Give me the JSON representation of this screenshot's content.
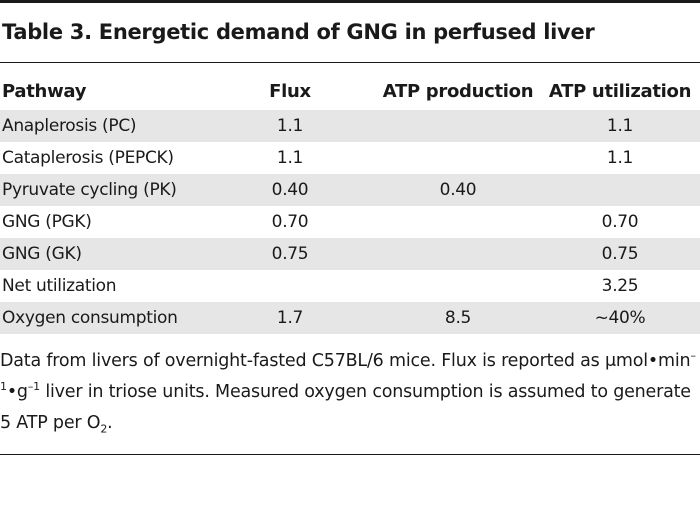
{
  "title": "Table 3. Energetic demand of GNG in perfused liver",
  "columns": [
    "Pathway",
    "Flux",
    "ATP production",
    "ATP utilization"
  ],
  "rows": [
    {
      "pathway": "Anaplerosis (PC)",
      "flux": "1.1",
      "atp_production": "",
      "atp_utilization": "1.1"
    },
    {
      "pathway": "Cataplerosis (PEPCK)",
      "flux": "1.1",
      "atp_production": "",
      "atp_utilization": "1.1"
    },
    {
      "pathway": "Pyruvate cycling (PK)",
      "flux": "0.40",
      "atp_production": "0.40",
      "atp_utilization": ""
    },
    {
      "pathway": "GNG (PGK)",
      "flux": "0.70",
      "atp_production": "",
      "atp_utilization": "0.70"
    },
    {
      "pathway": "GNG (GK)",
      "flux": "0.75",
      "atp_production": "",
      "atp_utilization": "0.75"
    },
    {
      "pathway": "Net utilization",
      "flux": "",
      "atp_production": "",
      "atp_utilization": "3.25"
    },
    {
      "pathway": "Oxygen consumption",
      "flux": "1.7",
      "atp_production": "8.5",
      "atp_utilization": "~40%"
    }
  ],
  "footnote": {
    "part1": "Data from livers of overnight-fasted C57BL/6 mice. Flux is reported as μmol•min",
    "sup1": "–1",
    "part2": "•g",
    "sup2": "–1",
    "part3": " liver in triose units. Measured oxygen consumption is assumed to generate 5 ATP per O",
    "sub1": "2",
    "part4": "."
  }
}
